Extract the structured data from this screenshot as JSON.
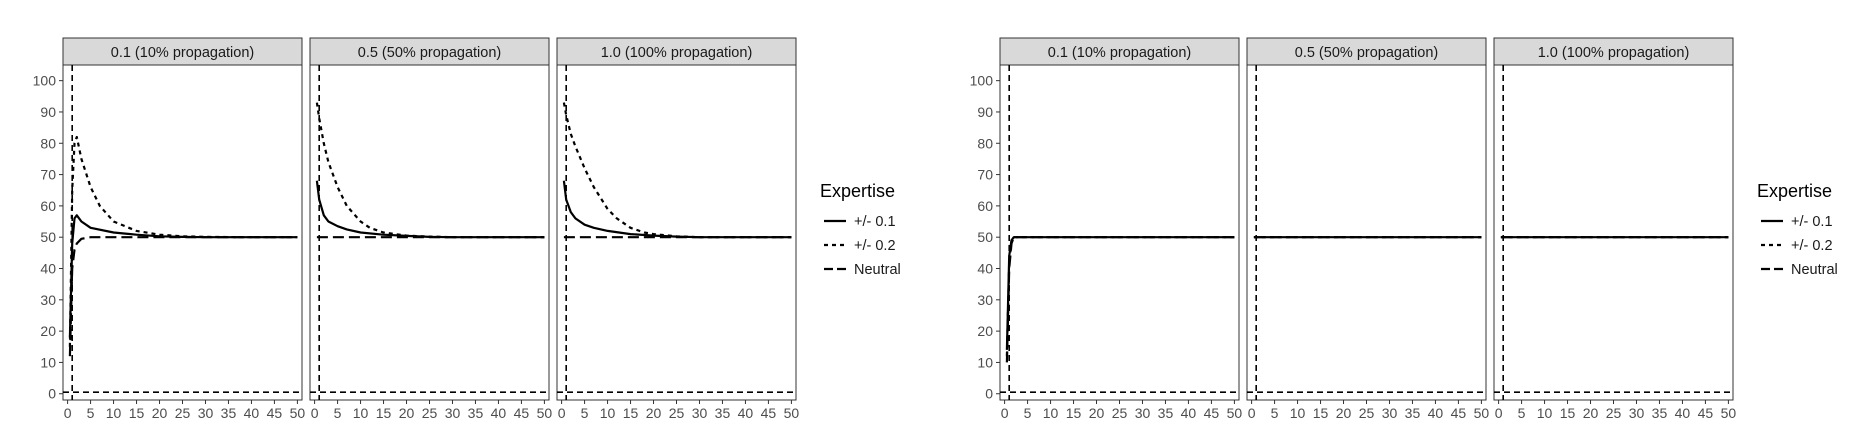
{
  "chart_data": [
    {
      "type": "line",
      "facet_strips": [
        "0.1 (10% propagation)",
        "0.5 (50% propagation)",
        "1.0 (100% propagation)"
      ],
      "x_ticks": [
        0,
        5,
        10,
        15,
        20,
        25,
        30,
        35,
        40,
        45,
        50
      ],
      "y_ticks": [
        0,
        10,
        20,
        30,
        40,
        50,
        60,
        70,
        80,
        90,
        100
      ],
      "xlim": [
        -1,
        51
      ],
      "ylim": [
        -2,
        105
      ],
      "legend": {
        "title": "Expertise",
        "placement": "right",
        "entries": [
          "+/- 0.1",
          "+/- 0.2",
          "Neutral"
        ]
      },
      "reference_lines": {
        "vertical_x": 1,
        "horizontal_y": 0.5
      },
      "panels": [
        {
          "strip": "0.1 (10% propagation)",
          "series": [
            {
              "name": "+/- 0.1",
              "x": [
                0.5,
                1,
                1.5,
                2,
                3,
                5,
                10,
                15,
                20,
                25,
                30,
                40,
                50
              ],
              "y": [
                18,
                48,
                56,
                57,
                55,
                53,
                51.5,
                50.8,
                50.3,
                50.1,
                50,
                50,
                50
              ]
            },
            {
              "name": "+/- 0.2",
              "x": [
                0.5,
                1,
                1.5,
                2,
                3,
                5,
                7,
                10,
                15,
                20,
                25,
                30,
                40,
                50
              ],
              "y": [
                15,
                65,
                80,
                82,
                75,
                66,
                60,
                55,
                52,
                50.8,
                50.3,
                50.1,
                50,
                50
              ]
            },
            {
              "name": "Neutral",
              "x": [
                0.5,
                1,
                1.5,
                2,
                3,
                5,
                10,
                20,
                30,
                40,
                50
              ],
              "y": [
                12,
                40,
                46,
                48,
                49.5,
                50,
                50,
                50,
                50,
                50,
                50
              ]
            }
          ]
        },
        {
          "strip": "0.5 (50% propagation)",
          "series": [
            {
              "name": "+/- 0.1",
              "x": [
                0.5,
                1,
                2,
                3,
                5,
                7,
                10,
                15,
                20,
                25,
                30,
                40,
                50
              ],
              "y": [
                68,
                62,
                57,
                55,
                53.5,
                52.5,
                51.5,
                50.8,
                50.4,
                50.1,
                50,
                50,
                50
              ]
            },
            {
              "name": "+/- 0.2",
              "x": [
                0.5,
                1,
                2,
                3,
                5,
                7,
                10,
                12,
                15,
                20,
                25,
                30,
                40,
                50
              ],
              "y": [
                93,
                88,
                80,
                74,
                66,
                60,
                55,
                53,
                51.5,
                50.5,
                50.2,
                50,
                50,
                50
              ]
            },
            {
              "name": "Neutral",
              "x": [
                0.5,
                1,
                2,
                5,
                10,
                20,
                30,
                40,
                50
              ],
              "y": [
                50,
                50,
                50,
                50,
                50,
                50,
                50,
                50,
                50
              ]
            }
          ]
        },
        {
          "strip": "1.0 (100% propagation)",
          "series": [
            {
              "name": "+/- 0.1",
              "x": [
                0.5,
                1,
                2,
                3,
                5,
                7,
                10,
                15,
                20,
                25,
                30,
                40,
                50
              ],
              "y": [
                68,
                62,
                58,
                56,
                54,
                53,
                52,
                51,
                50.5,
                50.2,
                50,
                50,
                50
              ]
            },
            {
              "name": "+/- 0.2",
              "x": [
                0.5,
                1,
                2,
                3,
                5,
                7,
                10,
                12,
                15,
                18,
                20,
                25,
                30,
                40,
                50
              ],
              "y": [
                93,
                89,
                83,
                79,
                72,
                66,
                59,
                56,
                53,
                51.5,
                51,
                50.3,
                50,
                50,
                50
              ]
            },
            {
              "name": "Neutral",
              "x": [
                0.5,
                1,
                2,
                5,
                10,
                20,
                30,
                40,
                50
              ],
              "y": [
                50,
                50,
                50,
                50,
                50,
                50,
                50,
                50,
                50
              ]
            }
          ]
        }
      ]
    },
    {
      "type": "line",
      "facet_strips": [
        "0.1 (10% propagation)",
        "0.5 (50% propagation)",
        "1.0 (100% propagation)"
      ],
      "x_ticks": [
        0,
        5,
        10,
        15,
        20,
        25,
        30,
        35,
        40,
        45,
        50
      ],
      "y_ticks": [
        0,
        10,
        20,
        30,
        40,
        50,
        60,
        70,
        80,
        90,
        100
      ],
      "xlim": [
        -1,
        51
      ],
      "ylim": [
        -2,
        105
      ],
      "legend": {
        "title": "Expertise",
        "placement": "right",
        "entries": [
          "+/- 0.1",
          "+/- 0.2",
          "Neutral"
        ]
      },
      "reference_lines": {
        "vertical_x": 1,
        "horizontal_y": 0.5
      },
      "panels": [
        {
          "strip": "0.1 (10% propagation)",
          "series": [
            {
              "name": "+/- 0.1",
              "x": [
                0.5,
                1,
                1.5,
                2,
                3,
                5,
                10,
                20,
                30,
                40,
                50
              ],
              "y": [
                14,
                44,
                49,
                50,
                50,
                50,
                50,
                50,
                50,
                50,
                50
              ]
            },
            {
              "name": "+/- 0.2",
              "x": [
                0.5,
                1,
                1.5,
                2,
                3,
                5,
                10,
                20,
                30,
                40,
                50
              ],
              "y": [
                12,
                42,
                48.5,
                50,
                50,
                50,
                50,
                50,
                50,
                50,
                50
              ]
            },
            {
              "name": "Neutral",
              "x": [
                0.5,
                1,
                1.5,
                2,
                3,
                5,
                10,
                20,
                30,
                40,
                50
              ],
              "y": [
                10,
                40,
                48,
                50,
                50,
                50,
                50,
                50,
                50,
                50,
                50
              ]
            }
          ]
        },
        {
          "strip": "0.5 (50% propagation)",
          "series": [
            {
              "name": "+/- 0.1",
              "x": [
                0.5,
                1,
                2,
                5,
                10,
                20,
                30,
                40,
                50
              ],
              "y": [
                50,
                50,
                50,
                50,
                50,
                50,
                50,
                50,
                50
              ]
            },
            {
              "name": "+/- 0.2",
              "x": [
                0.5,
                1,
                2,
                5,
                10,
                20,
                30,
                40,
                50
              ],
              "y": [
                50,
                50,
                50,
                50,
                50,
                50,
                50,
                50,
                50
              ]
            },
            {
              "name": "Neutral",
              "x": [
                0.5,
                1,
                2,
                5,
                10,
                20,
                30,
                40,
                50
              ],
              "y": [
                50,
                50,
                50,
                50,
                50,
                50,
                50,
                50,
                50
              ]
            }
          ]
        },
        {
          "strip": "1.0 (100% propagation)",
          "series": [
            {
              "name": "+/- 0.1",
              "x": [
                0.5,
                1,
                2,
                5,
                10,
                20,
                30,
                40,
                50
              ],
              "y": [
                50,
                50,
                50,
                50,
                50,
                50,
                50,
                50,
                50
              ]
            },
            {
              "name": "+/- 0.2",
              "x": [
                0.5,
                1,
                2,
                5,
                10,
                20,
                30,
                40,
                50
              ],
              "y": [
                50,
                50,
                50,
                50,
                50,
                50,
                50,
                50,
                50
              ]
            },
            {
              "name": "Neutral",
              "x": [
                0.5,
                1,
                2,
                5,
                10,
                20,
                30,
                40,
                50
              ],
              "y": [
                50,
                50,
                50,
                50,
                50,
                50,
                50,
                50,
                50
              ]
            }
          ]
        }
      ]
    }
  ]
}
